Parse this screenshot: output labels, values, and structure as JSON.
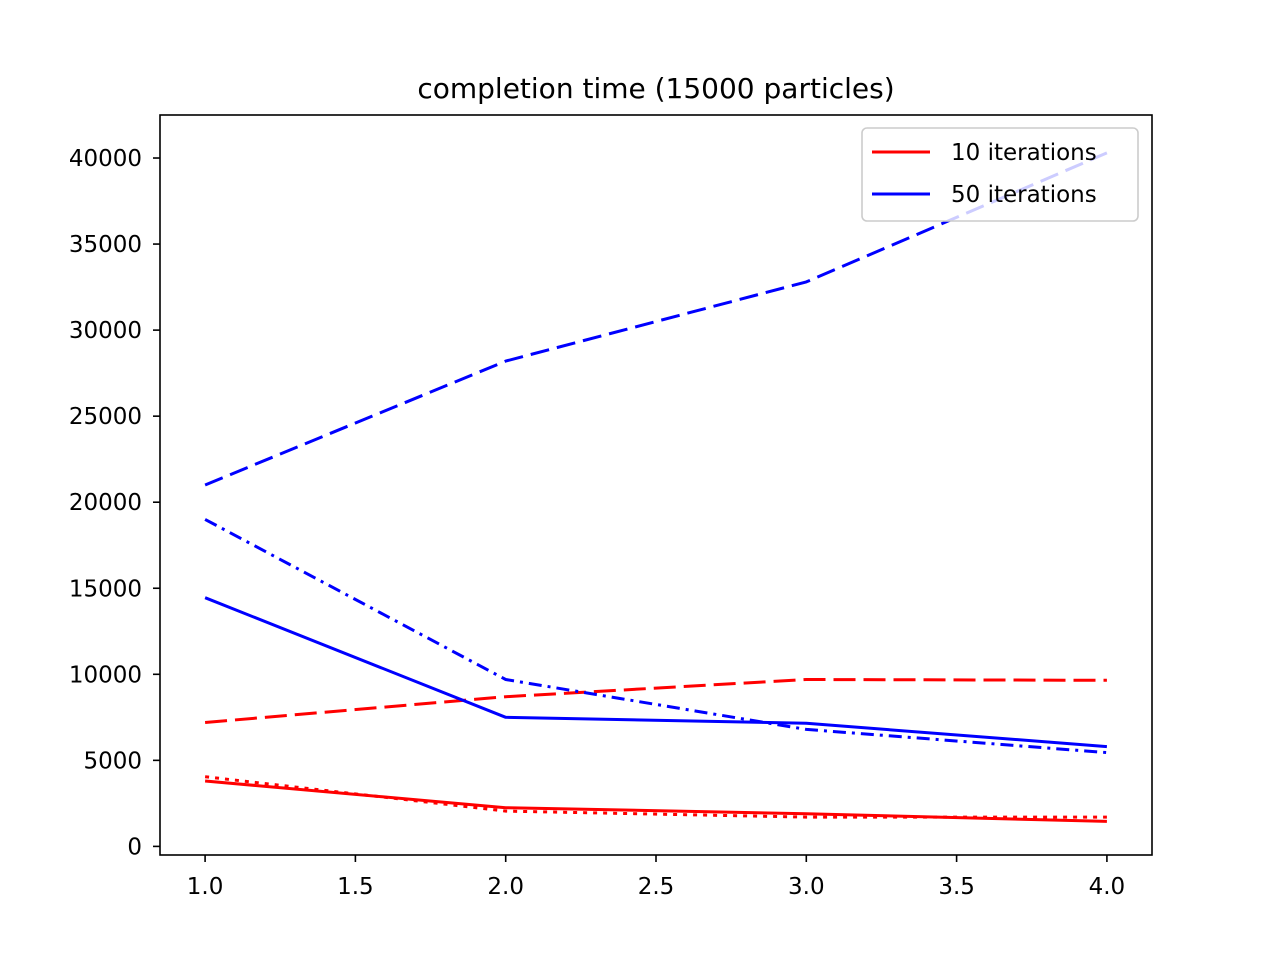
{
  "chart_data": {
    "type": "line",
    "title": "completion time (15000 particles)",
    "xlabel": "",
    "ylabel": "",
    "xlim": [
      0.85,
      4.15
    ],
    "ylim": [
      -500,
      42500
    ],
    "xticks": [
      1.0,
      1.5,
      2.0,
      2.5,
      3.0,
      3.5,
      4.0
    ],
    "xtick_labels": [
      "1.0",
      "1.5",
      "2.0",
      "2.5",
      "3.0",
      "3.5",
      "4.0"
    ],
    "yticks": [
      0,
      5000,
      10000,
      15000,
      20000,
      25000,
      30000,
      35000,
      40000
    ],
    "ytick_labels": [
      "0",
      "5000",
      "10000",
      "15000",
      "20000",
      "25000",
      "30000",
      "35000",
      "40000"
    ],
    "grid": false,
    "legend": {
      "position": "top-right",
      "entries": [
        {
          "label": "10 iterations",
          "color": "#ff0000"
        },
        {
          "label": "50 iterations",
          "color": "#0000ff"
        }
      ]
    },
    "series": [
      {
        "color": "#ff0000",
        "style": "solid",
        "x": [
          1,
          2,
          3,
          4
        ],
        "y": [
          3800,
          2250,
          1900,
          1450
        ]
      },
      {
        "color": "#ff0000",
        "style": "longdash",
        "x": [
          1,
          2,
          3,
          4
        ],
        "y": [
          7200,
          8700,
          9700,
          9650
        ]
      },
      {
        "color": "#ff0000",
        "style": "dotted",
        "x": [
          1,
          2,
          3,
          4
        ],
        "y": [
          4050,
          2050,
          1700,
          1700
        ]
      },
      {
        "color": "#0000ff",
        "style": "solid",
        "x": [
          1,
          2,
          3,
          4
        ],
        "y": [
          14450,
          7500,
          7150,
          5800
        ]
      },
      {
        "color": "#0000ff",
        "style": "dashed",
        "x": [
          1,
          2,
          3,
          4
        ],
        "y": [
          21000,
          28200,
          32800,
          40300
        ]
      },
      {
        "color": "#0000ff",
        "style": "dashdot",
        "x": [
          1,
          2,
          3,
          4
        ],
        "y": [
          19000,
          9700,
          6800,
          5450
        ]
      }
    ]
  }
}
